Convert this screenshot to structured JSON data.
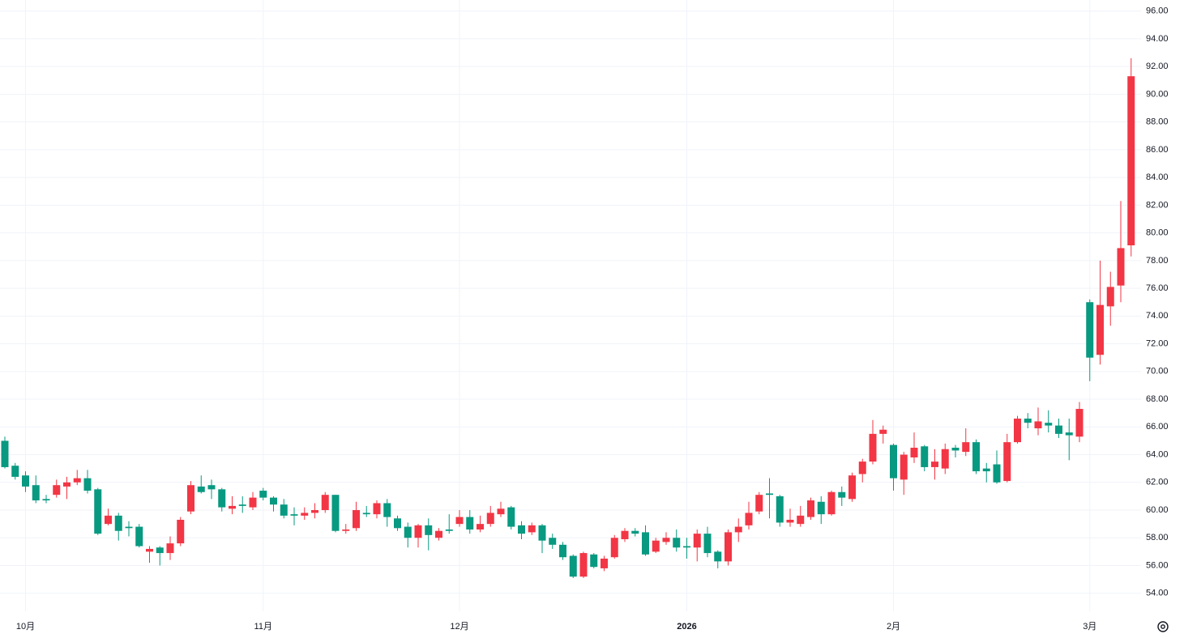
{
  "chart_data": {
    "type": "candlestick",
    "categories": [
      null,
      null,
      "10月",
      null,
      null,
      null,
      null,
      null,
      null,
      null,
      null,
      null,
      null,
      null,
      null,
      null,
      null,
      null,
      null,
      null,
      null,
      null,
      null,
      null,
      null,
      "11月",
      null,
      null,
      null,
      null,
      null,
      null,
      null,
      null,
      null,
      null,
      null,
      null,
      null,
      null,
      null,
      null,
      null,
      null,
      "12月",
      null,
      null,
      null,
      null,
      null,
      null,
      null,
      null,
      null,
      null,
      null,
      null,
      null,
      null,
      null,
      null,
      null,
      null,
      null,
      null,
      null,
      "2026",
      null,
      null,
      null,
      null,
      null,
      null,
      null,
      null,
      null,
      null,
      null,
      null,
      null,
      null,
      null,
      null,
      null,
      null,
      null,
      "2月",
      null,
      null,
      null,
      null,
      null,
      null,
      null,
      null,
      null,
      null,
      null,
      null,
      null,
      null,
      null,
      null,
      null,
      null,
      "3月",
      null,
      null,
      null,
      null
    ],
    "open": [
      65.0,
      63.2,
      62.5,
      61.8,
      60.8,
      61.1,
      61.7,
      62.0,
      62.3,
      61.5,
      59.0,
      59.6,
      58.8,
      58.8,
      57.0,
      57.3,
      56.9,
      57.6,
      59.9,
      61.7,
      61.8,
      61.5,
      60.1,
      60.4,
      60.2,
      61.4,
      60.9,
      60.4,
      59.7,
      59.6,
      59.8,
      60.0,
      61.1,
      58.5,
      58.7,
      59.8,
      59.7,
      60.5,
      59.4,
      58.8,
      58.0,
      58.9,
      58.0,
      58.6,
      59.0,
      59.5,
      58.6,
      59.0,
      59.7,
      60.2,
      58.9,
      58.4,
      58.9,
      58.0,
      57.5,
      56.7,
      55.2,
      56.8,
      55.8,
      56.6,
      57.9,
      58.5,
      58.4,
      57.0,
      57.7,
      58.0,
      57.4,
      57.3,
      58.3,
      57.0,
      56.3,
      58.4,
      58.9,
      59.9,
      61.2,
      61.0,
      59.1,
      59.0,
      59.5,
      60.6,
      59.7,
      61.3,
      60.8,
      62.6,
      63.5,
      65.5,
      64.7,
      62.2,
      63.8,
      64.6,
      63.1,
      63.0,
      64.5,
      64.2,
      64.9,
      63.0,
      63.3,
      62.1,
      64.9,
      66.6,
      65.9,
      66.3,
      66.1,
      65.6,
      65.3,
      75.0,
      71.2,
      74.7,
      76.2,
      79.1
    ],
    "high": [
      65.3,
      63.4,
      62.8,
      62.5,
      61.1,
      62.2,
      62.4,
      62.9,
      62.9,
      61.6,
      60.1,
      59.8,
      59.2,
      59.0,
      57.4,
      57.4,
      58.1,
      59.5,
      62.1,
      62.5,
      62.2,
      61.6,
      61.0,
      61.0,
      61.3,
      61.6,
      61.0,
      60.8,
      60.2,
      60.2,
      60.5,
      61.3,
      61.1,
      59.0,
      60.6,
      60.3,
      60.7,
      60.8,
      59.6,
      59.1,
      59.0,
      59.4,
      58.7,
      59.7,
      60.0,
      60.0,
      59.6,
      60.3,
      60.6,
      60.3,
      59.2,
      59.1,
      59.0,
      58.3,
      57.7,
      56.8,
      57.0,
      56.9,
      56.7,
      58.2,
      58.7,
      58.7,
      58.9,
      58.0,
      58.4,
      58.6,
      58.0,
      58.6,
      58.8,
      57.1,
      58.6,
      59.4,
      60.6,
      61.3,
      62.3,
      61.1,
      60.1,
      60.3,
      60.9,
      61.0,
      61.4,
      61.7,
      62.7,
      63.7,
      66.5,
      66.1,
      64.8,
      64.2,
      65.6,
      64.7,
      64.4,
      64.8,
      64.7,
      65.9,
      65.1,
      63.4,
      64.3,
      65.5,
      66.8,
      67.0,
      67.4,
      67.2,
      66.6,
      66.6,
      67.8,
      75.2,
      78.0,
      77.2,
      82.3,
      92.6
    ],
    "low": [
      63.0,
      62.2,
      61.3,
      60.5,
      60.5,
      60.9,
      60.8,
      61.8,
      61.2,
      58.2,
      58.9,
      57.8,
      58.1,
      57.3,
      56.2,
      56.0,
      56.4,
      57.4,
      59.7,
      61.2,
      60.8,
      59.9,
      59.7,
      59.8,
      60.0,
      60.7,
      59.9,
      59.4,
      58.9,
      59.3,
      59.4,
      59.8,
      58.4,
      58.3,
      58.5,
      59.5,
      59.4,
      58.8,
      58.5,
      57.3,
      57.3,
      57.1,
      57.8,
      58.3,
      58.8,
      58.3,
      58.4,
      58.8,
      59.5,
      58.6,
      57.9,
      58.2,
      56.9,
      57.2,
      56.4,
      55.1,
      55.1,
      55.8,
      55.6,
      56.5,
      57.7,
      58.1,
      56.7,
      56.9,
      57.5,
      57.0,
      56.5,
      56.3,
      56.6,
      55.8,
      56.0,
      57.7,
      58.6,
      59.7,
      59.4,
      58.8,
      58.8,
      58.8,
      59.3,
      59.0,
      59.6,
      60.3,
      60.6,
      62.0,
      63.3,
      64.8,
      61.4,
      61.1,
      63.4,
      62.8,
      62.2,
      62.6,
      63.8,
      63.9,
      62.6,
      62.0,
      61.9,
      62.0,
      64.8,
      65.9,
      65.4,
      65.6,
      65.2,
      63.6,
      64.9,
      69.3,
      70.5,
      73.3,
      75.0,
      78.3
    ],
    "close": [
      63.1,
      62.4,
      61.7,
      60.7,
      60.7,
      61.8,
      62.0,
      62.3,
      61.4,
      58.3,
      59.6,
      58.5,
      58.7,
      57.4,
      57.2,
      56.9,
      57.6,
      59.3,
      61.8,
      61.3,
      61.5,
      60.2,
      60.3,
      60.3,
      60.9,
      60.9,
      60.4,
      59.6,
      59.6,
      59.8,
      60.0,
      61.1,
      58.5,
      58.6,
      60.0,
      59.7,
      60.5,
      59.5,
      58.7,
      58.0,
      58.9,
      58.2,
      58.5,
      58.5,
      59.5,
      58.6,
      59.0,
      59.8,
      60.1,
      58.8,
      58.3,
      58.9,
      57.8,
      57.5,
      56.6,
      55.2,
      56.9,
      55.9,
      56.5,
      58.0,
      58.5,
      58.3,
      56.8,
      57.8,
      58.0,
      57.3,
      57.3,
      58.3,
      56.9,
      56.3,
      58.4,
      58.8,
      59.8,
      61.1,
      61.1,
      59.1,
      59.3,
      59.6,
      60.7,
      59.7,
      61.3,
      60.9,
      62.5,
      63.5,
      65.5,
      65.8,
      62.3,
      64.0,
      64.5,
      63.1,
      63.5,
      64.4,
      64.3,
      64.9,
      62.8,
      62.8,
      62.0,
      64.9,
      66.6,
      66.3,
      66.4,
      66.1,
      65.5,
      65.4,
      67.3,
      71.0,
      74.8,
      76.1,
      78.9,
      91.3
    ],
    "up_color": "#f23645",
    "down_color": "#089981",
    "ylim": [
      52.7,
      96.8
    ],
    "yticks": [
      {
        "value": 54,
        "label": "54.00"
      },
      {
        "value": 56,
        "label": "56.00"
      },
      {
        "value": 58,
        "label": "58.00"
      },
      {
        "value": 60,
        "label": "60.00"
      },
      {
        "value": 62,
        "label": "62.00"
      },
      {
        "value": 64,
        "label": "64.00"
      },
      {
        "value": 66,
        "label": "66.00"
      },
      {
        "value": 68,
        "label": "68.00"
      },
      {
        "value": 70,
        "label": "70.00"
      },
      {
        "value": 72,
        "label": "72.00"
      },
      {
        "value": 74,
        "label": "74.00"
      },
      {
        "value": 76,
        "label": "76.00"
      },
      {
        "value": 78,
        "label": "78.00"
      },
      {
        "value": 80,
        "label": "80.00"
      },
      {
        "value": 82,
        "label": "82.00"
      },
      {
        "value": 84,
        "label": "84.00"
      },
      {
        "value": 86,
        "label": "86.00"
      },
      {
        "value": 88,
        "label": "88.00"
      },
      {
        "value": 90,
        "label": "90.00"
      },
      {
        "value": 92,
        "label": "92.00"
      },
      {
        "value": 94,
        "label": "94.00"
      },
      {
        "value": 96,
        "label": "96.00"
      }
    ],
    "grid": true
  }
}
